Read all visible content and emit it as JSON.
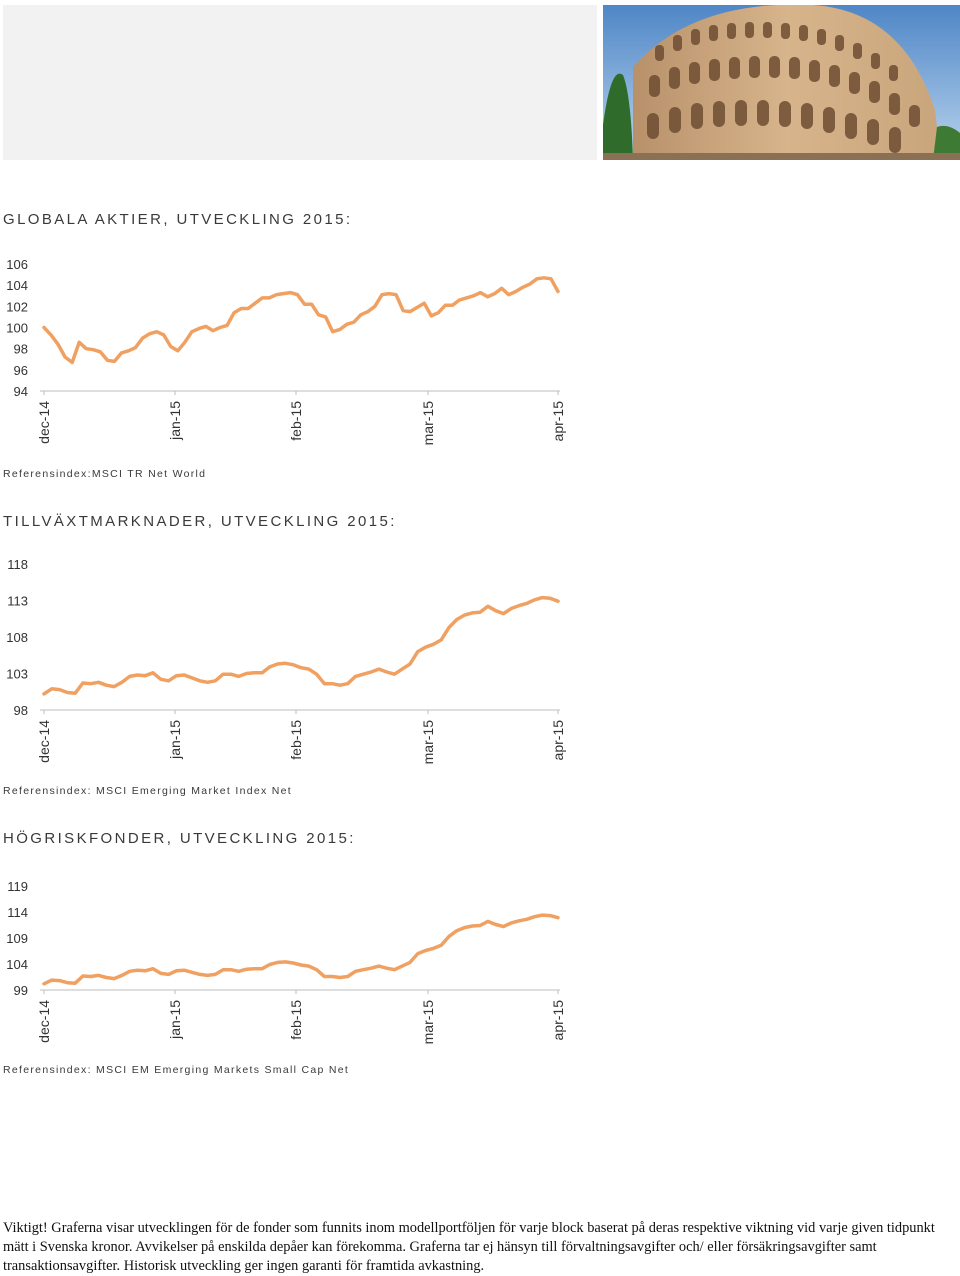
{
  "header": {
    "image_alt": "Colosseum photograph"
  },
  "sections": [
    {
      "title": "GLOBALA AKTIER, UTVECKLING 2015:",
      "reference": "Referensindex:MSCI TR Net World"
    },
    {
      "title": "TILLVÄXTMARKNADER, UTVECKLING 2015:",
      "reference": "Referensindex: MSCI Emerging Market Index Net"
    },
    {
      "title": "HÖGRISKFONDER, UTVECKLING 2015:",
      "reference": "Referensindex: MSCI EM Emerging Markets Small Cap Net"
    }
  ],
  "chart_data": [
    {
      "type": "line",
      "title": "GLOBALA AKTIER, UTVECKLING 2015:",
      "x_labels": [
        "dec-14",
        "jan-15",
        "feb-15",
        "mar-15",
        "apr-15"
      ],
      "y_ticks": [
        106,
        104,
        102,
        100,
        98,
        96,
        94
      ],
      "ylim": [
        94,
        106
      ],
      "grid": false,
      "line_color": "#f0a060",
      "values": [
        100.0,
        99.3,
        98.4,
        97.2,
        96.7,
        98.6,
        98.0,
        97.9,
        97.7,
        96.9,
        96.8,
        97.6,
        97.8,
        98.1,
        99.0,
        99.4,
        99.6,
        99.3,
        98.2,
        97.8,
        98.6,
        99.6,
        99.9,
        100.1,
        99.7,
        100.0,
        100.2,
        101.4,
        101.8,
        101.8,
        102.3,
        102.8,
        102.8,
        103.1,
        103.2,
        103.3,
        103.1,
        102.2,
        102.2,
        101.2,
        101.0,
        99.6,
        99.8,
        100.3,
        100.5,
        101.2,
        101.5,
        102.0,
        103.1,
        103.2,
        103.1,
        101.6,
        101.5,
        101.9,
        102.3,
        101.1,
        101.4,
        102.1,
        102.1,
        102.6,
        102.8,
        103.0,
        103.3,
        102.9,
        103.2,
        103.7,
        103.1,
        103.4,
        103.8,
        104.1,
        104.6,
        104.7,
        104.6,
        103.4
      ]
    },
    {
      "type": "line",
      "title": "TILLVÄXTMARKNADER, UTVECKLING 2015:",
      "x_labels": [
        "dec-14",
        "jan-15",
        "feb-15",
        "mar-15",
        "apr-15"
      ],
      "y_ticks": [
        118,
        113,
        108,
        103,
        98
      ],
      "ylim": [
        98,
        118
      ],
      "grid": false,
      "line_color": "#f0a060",
      "values": [
        100.2,
        100.9,
        100.8,
        100.4,
        100.3,
        101.7,
        101.6,
        101.8,
        101.4,
        101.2,
        101.8,
        102.6,
        102.8,
        102.7,
        103.1,
        102.2,
        102.0,
        102.7,
        102.8,
        102.4,
        102.0,
        101.8,
        102.0,
        102.9,
        102.9,
        102.6,
        103.0,
        103.1,
        103.1,
        103.9,
        104.3,
        104.4,
        104.2,
        103.8,
        103.6,
        102.9,
        101.6,
        101.6,
        101.4,
        101.6,
        102.6,
        102.9,
        103.2,
        103.6,
        103.2,
        102.9,
        103.6,
        104.3,
        106.0,
        106.6,
        107.0,
        107.6,
        109.3,
        110.4,
        111.0,
        111.3,
        111.4,
        112.2,
        111.6,
        111.2,
        111.9,
        112.3,
        112.6,
        113.1,
        113.4,
        113.3,
        112.9
      ]
    },
    {
      "type": "line",
      "title": "HÖGRISKFONDER, UTVECKLING 2015:",
      "x_labels": [
        "dec-14",
        "jan-15",
        "feb-15",
        "mar-15",
        "apr-15"
      ],
      "y_ticks": [
        119,
        114,
        109,
        104,
        99
      ],
      "ylim": [
        99,
        119
      ],
      "grid": false,
      "line_color": "#f0a060",
      "values": [
        100.2,
        100.9,
        100.8,
        100.4,
        100.3,
        101.7,
        101.6,
        101.8,
        101.4,
        101.2,
        101.8,
        102.6,
        102.8,
        102.7,
        103.1,
        102.2,
        102.0,
        102.7,
        102.8,
        102.4,
        102.0,
        101.8,
        102.0,
        102.9,
        102.9,
        102.6,
        103.0,
        103.1,
        103.1,
        103.9,
        104.3,
        104.4,
        104.2,
        103.8,
        103.6,
        102.9,
        101.6,
        101.6,
        101.4,
        101.6,
        102.6,
        102.9,
        103.2,
        103.6,
        103.2,
        102.9,
        103.6,
        104.3,
        106.0,
        106.6,
        107.0,
        107.6,
        109.3,
        110.4,
        111.0,
        111.3,
        111.4,
        112.2,
        111.6,
        111.2,
        111.9,
        112.3,
        112.6,
        113.1,
        113.4,
        113.3,
        112.9
      ]
    }
  ],
  "disclaimer": "Viktigt! Graferna visar utvecklingen för de fonder som funnits inom modellportföljen för varje block baserat på deras respektive viktning vid varje given tidpunkt mätt i Svenska kronor. Avvikelser på enskilda depåer kan förekomma. Graferna tar ej hänsyn till förvaltningsavgifter och/ eller försäkringsavgifter samt transaktionsavgifter. Historisk utveckling ger ingen garanti för framtida avkastning."
}
